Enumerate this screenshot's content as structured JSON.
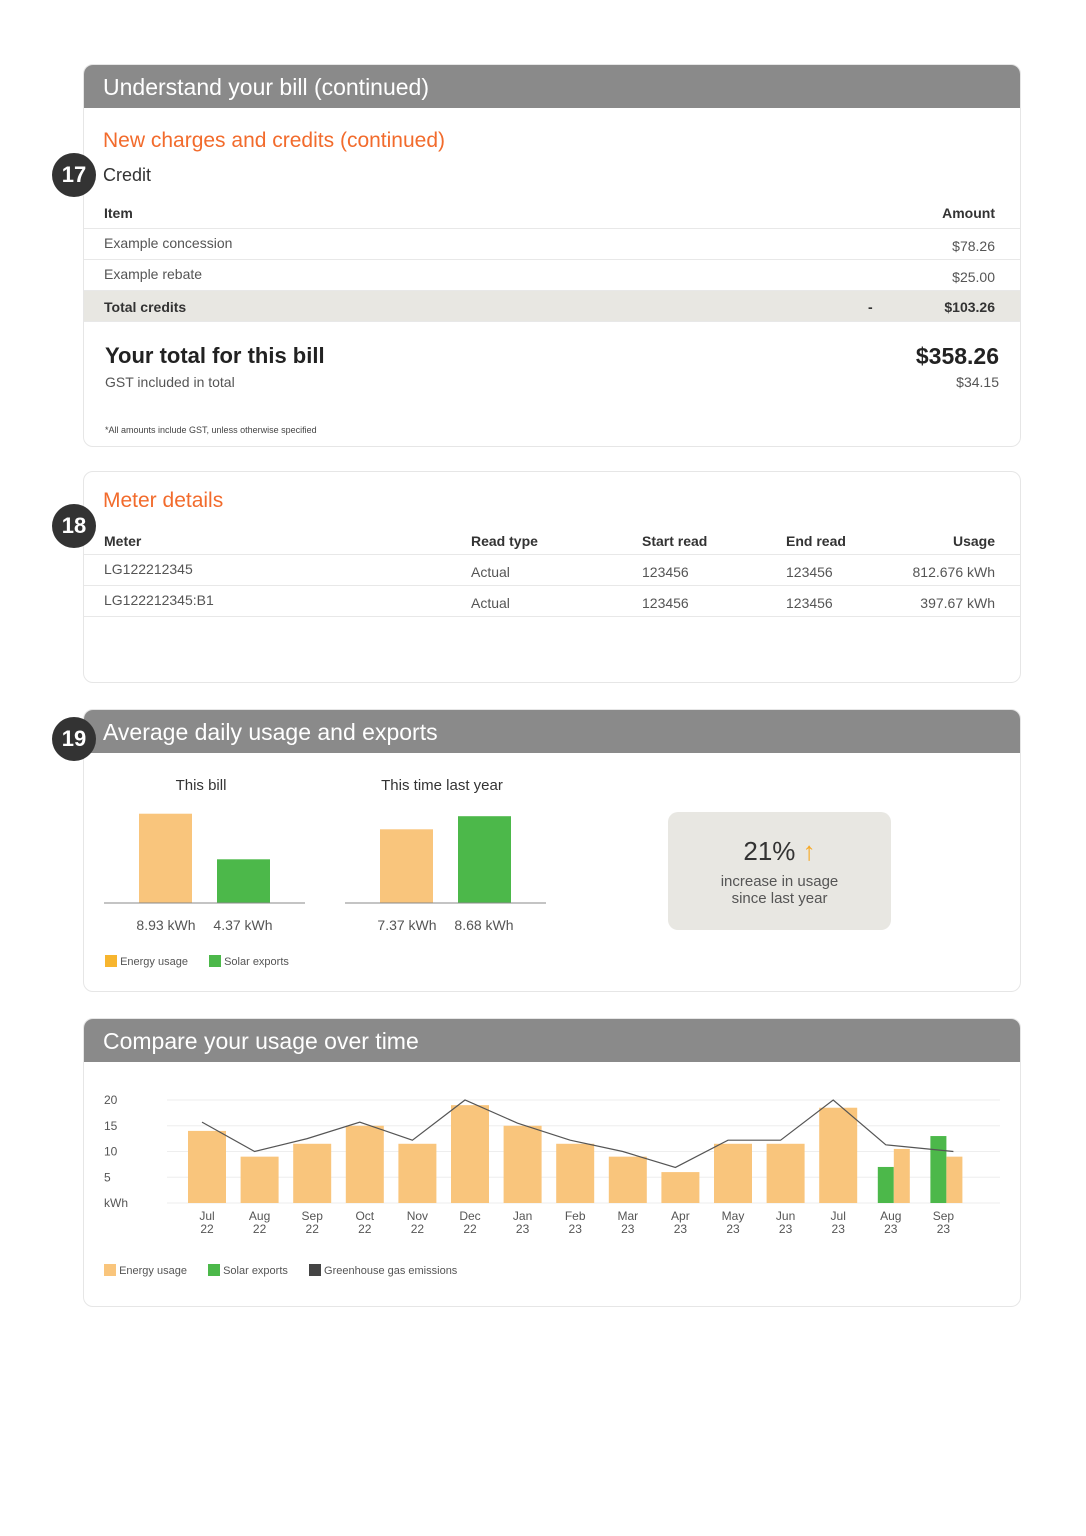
{
  "bill_section": {
    "header": "Understand your bill (continued)",
    "subtitle": "New charges and credits (continued)",
    "badge": "17",
    "heading": "Credit",
    "columns": [
      "Item",
      "Amount"
    ],
    "rows": [
      {
        "item": "Example concession",
        "amount": "$78.26"
      },
      {
        "item": "Example rebate",
        "amount": "$25.00"
      }
    ],
    "total": {
      "label": "Total credits",
      "sign": "-",
      "amount": "$103.26"
    },
    "bill_total": {
      "label": "Your total for this bill",
      "amount": "$358.26",
      "gst_label": "GST included in total",
      "gst_amount": "$34.15"
    },
    "footnote": "*All amounts include GST, unless otherwise specified"
  },
  "meter_section": {
    "title": "Meter details",
    "badge": "18",
    "columns": [
      "Meter",
      "Read type",
      "Start read",
      "End read",
      "Usage"
    ],
    "rows": [
      [
        "LG122212345",
        "Actual",
        "123456",
        "123456",
        "812.676 kWh"
      ],
      [
        "LG122212345:B1",
        "Actual",
        "123456",
        "123456",
        "397.67 kWh"
      ]
    ]
  },
  "daily_section": {
    "header": "Average daily usage and exports",
    "badge": "19",
    "this_bill": {
      "title": "This bill",
      "usage": 8.93,
      "exports": 4.37,
      "usage_label": "8.93 kWh",
      "exports_label": "4.37 kWh"
    },
    "last_year": {
      "title": "This time last year",
      "usage": 7.37,
      "exports": 8.68,
      "usage_label": "7.37 kWh",
      "exports_label": "8.68 kWh"
    },
    "change": {
      "value": "21%",
      "icon": "arrow-up-icon",
      "line1": "increase in usage",
      "line2": "since last year"
    },
    "legend": [
      "Energy usage",
      "Solar exports"
    ]
  },
  "compare_section": {
    "header": "Compare your usage over time",
    "legend": [
      "Energy usage",
      "Solar exports",
      "Greenhouse gas emissions"
    ]
  },
  "colors": {
    "usage": "#f9c57c",
    "exports": "#4cb84a",
    "emissions": "#555555",
    "header": "#8a8a8a",
    "accent": "#f26b2c",
    "increase_arrow": "#f7a823"
  },
  "chart_data": {
    "type": "bar",
    "ylabel": "kWh",
    "yticks": [
      20,
      15,
      10,
      5
    ],
    "ylim": [
      0,
      20
    ],
    "grid": true,
    "legend_position": "bottom-left",
    "categories": [
      [
        "Jul",
        "22"
      ],
      [
        "Aug",
        "22"
      ],
      [
        "Sep",
        "22"
      ],
      [
        "Oct",
        "22"
      ],
      [
        "Nov",
        "22"
      ],
      [
        "Dec",
        "22"
      ],
      [
        "Jan",
        "23"
      ],
      [
        "Feb",
        "23"
      ],
      [
        "Mar",
        "23"
      ],
      [
        "Apr",
        "23"
      ],
      [
        "May",
        "23"
      ],
      [
        "Jun",
        "23"
      ],
      [
        "Jul",
        "23"
      ],
      [
        "Aug",
        "23"
      ],
      [
        "Sep",
        "23"
      ]
    ],
    "series": [
      {
        "name": "Energy usage",
        "type": "bar",
        "values": [
          14,
          9,
          11.5,
          15,
          11.5,
          19,
          15,
          11.5,
          9,
          6,
          11.5,
          11.5,
          18.5,
          10.5,
          9
        ]
      },
      {
        "name": "Solar exports",
        "type": "bar",
        "values": [
          null,
          null,
          null,
          null,
          null,
          null,
          null,
          null,
          null,
          null,
          null,
          null,
          null,
          7,
          13
        ]
      },
      {
        "name": "Greenhouse gas emissions",
        "type": "line",
        "values": [
          15.7,
          10,
          12.5,
          15.7,
          12.2,
          20,
          15.5,
          12.2,
          10,
          6.9,
          12.2,
          12.2,
          20,
          11.3,
          10
        ]
      }
    ]
  }
}
